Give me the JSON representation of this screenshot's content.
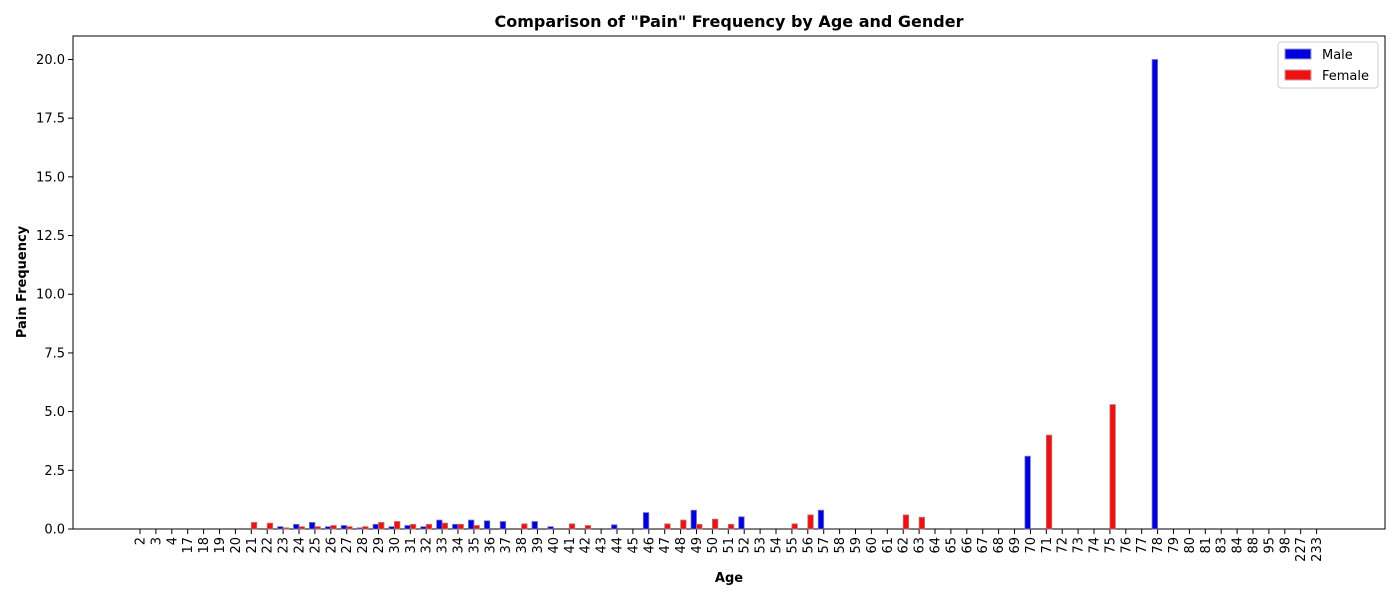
{
  "chart_data": {
    "type": "bar",
    "title": "Comparison of \"Pain\" Frequency by Age and Gender",
    "xlabel": "Age",
    "ylabel": "Pain Frequency",
    "ylim": [
      0,
      21
    ],
    "yticks": [
      "0.0",
      "2.5",
      "5.0",
      "7.5",
      "10.0",
      "12.5",
      "15.0",
      "17.5",
      "20.0"
    ],
    "categories": [
      "2",
      "3",
      "4",
      "17",
      "18",
      "19",
      "20",
      "21",
      "22",
      "23",
      "24",
      "25",
      "26",
      "27",
      "28",
      "29",
      "30",
      "31",
      "32",
      "33",
      "34",
      "35",
      "36",
      "37",
      "38",
      "39",
      "40",
      "41",
      "42",
      "43",
      "44",
      "45",
      "46",
      "47",
      "48",
      "49",
      "50",
      "51",
      "52",
      "53",
      "54",
      "55",
      "56",
      "57",
      "58",
      "59",
      "60",
      "61",
      "62",
      "63",
      "64",
      "65",
      "66",
      "67",
      "68",
      "69",
      "70",
      "71",
      "72",
      "73",
      "74",
      "75",
      "76",
      "77",
      "78",
      "79",
      "80",
      "81",
      "83",
      "84",
      "88",
      "95",
      "98",
      "227",
      "233"
    ],
    "series": [
      {
        "name": "Male",
        "color": "#0000dd",
        "values": [
          0,
          0,
          0,
          0,
          0,
          0,
          0,
          0,
          0,
          0.1,
          0.2,
          0.28,
          0.1,
          0.15,
          0.05,
          0.2,
          0.1,
          0.15,
          0.1,
          0.38,
          0.2,
          0.38,
          0.35,
          0.32,
          0,
          0.32,
          0.1,
          0,
          0,
          0,
          0.18,
          0,
          0.7,
          0,
          0,
          0.8,
          0,
          0,
          0.52,
          0,
          0,
          0,
          0,
          0.8,
          0,
          0,
          0,
          0,
          0,
          0,
          0,
          0,
          0,
          0,
          0,
          0,
          3.1,
          0,
          0,
          0,
          0,
          0,
          0,
          0,
          20,
          0,
          0,
          0,
          0,
          0,
          0,
          0,
          0,
          0,
          0
        ]
      },
      {
        "name": "Female",
        "color": "#ee1111",
        "values": [
          0,
          0,
          0,
          0,
          0,
          0,
          0,
          0.28,
          0.25,
          0.05,
          0.1,
          0.1,
          0.15,
          0.1,
          0.1,
          0.28,
          0.32,
          0.2,
          0.2,
          0.25,
          0.2,
          0.15,
          0,
          0,
          0.22,
          0,
          0,
          0.22,
          0.15,
          0,
          0,
          0,
          0,
          0.22,
          0.38,
          0.2,
          0.42,
          0.2,
          0,
          0,
          0,
          0.22,
          0.6,
          0,
          0,
          0,
          0,
          0,
          0.6,
          0.5,
          0,
          0,
          0,
          0,
          0,
          0,
          0,
          4.0,
          0,
          0,
          0,
          5.3,
          0,
          0,
          0,
          0,
          0,
          0,
          0,
          0,
          0,
          0,
          0,
          0,
          0
        ]
      }
    ],
    "legend": {
      "placement": "top-right"
    },
    "grid": false
  }
}
